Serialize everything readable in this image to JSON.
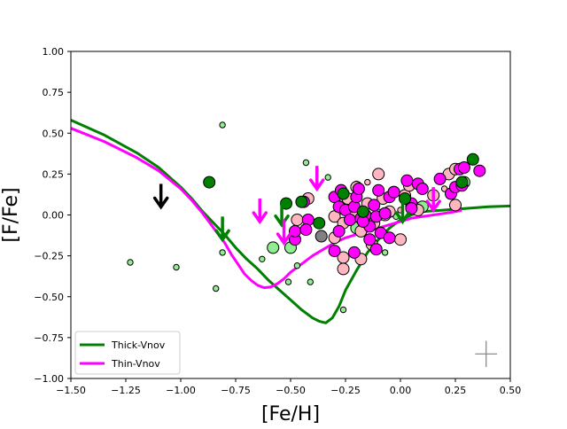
{
  "chart_data": {
    "type": "scatter",
    "title": "",
    "xlabel": "[Fe/H]",
    "ylabel": "[F/Fe]",
    "xlim": [
      -1.5,
      0.5
    ],
    "ylim": [
      -1.0,
      1.0
    ],
    "x_ticks": [
      "−1.50",
      "−1.25",
      "−1.00",
      "−0.75",
      "−0.50",
      "−0.25",
      "0.00",
      "0.25",
      "0.50"
    ],
    "y_ticks": [
      "−1.00",
      "−0.75",
      "−0.50",
      "−0.25",
      "0.00",
      "0.25",
      "0.50",
      "0.75",
      "1.00"
    ],
    "x_tick_values": [
      -1.5,
      -1.25,
      -1.0,
      -0.75,
      -0.5,
      -0.25,
      0.0,
      0.25,
      0.5
    ],
    "y_tick_values": [
      -1.0,
      -0.75,
      -0.5,
      -0.25,
      0.0,
      0.25,
      0.5,
      0.75,
      1.0
    ],
    "grid": false,
    "legend": {
      "placement": "lower-left",
      "entries": [
        {
          "label": "Thick-Vnov",
          "color": "#008000"
        },
        {
          "label": "Thin-Vnov",
          "color": "#ff00ff"
        }
      ]
    },
    "colors": {
      "thick": "#008000",
      "thin": "#ff00ff",
      "lightgreen": "#90ee90",
      "pink": "#ffb6c1",
      "gray": "#808080",
      "black": "#000000"
    },
    "lines": [
      {
        "name": "Thick-Vnov",
        "color": "#008000",
        "x": [
          -1.5,
          -1.35,
          -1.2,
          -1.1,
          -1.0,
          -0.95,
          -0.9,
          -0.85,
          -0.8,
          -0.75,
          -0.7,
          -0.65,
          -0.6,
          -0.55,
          -0.5,
          -0.45,
          -0.4,
          -0.37,
          -0.34,
          -0.31,
          -0.28,
          -0.25,
          -0.2,
          -0.15,
          -0.1,
          -0.05,
          0.0,
          0.05,
          0.1,
          0.2,
          0.3,
          0.4,
          0.5
        ],
        "y": [
          0.58,
          0.49,
          0.38,
          0.29,
          0.17,
          0.1,
          0.02,
          -0.05,
          -0.12,
          -0.2,
          -0.27,
          -0.33,
          -0.4,
          -0.46,
          -0.52,
          -0.58,
          -0.63,
          -0.65,
          -0.66,
          -0.63,
          -0.56,
          -0.46,
          -0.34,
          -0.23,
          -0.15,
          -0.08,
          -0.03,
          0.0,
          0.02,
          0.03,
          0.04,
          0.05,
          0.055
        ]
      },
      {
        "name": "Thin-Vnov",
        "color": "#ff00ff",
        "x": [
          -1.5,
          -1.35,
          -1.2,
          -1.1,
          -1.0,
          -0.95,
          -0.9,
          -0.85,
          -0.8,
          -0.77,
          -0.74,
          -0.71,
          -0.68,
          -0.65,
          -0.62,
          -0.59,
          -0.56,
          -0.53,
          -0.5,
          -0.45,
          -0.4,
          -0.35,
          -0.3,
          -0.25,
          -0.2,
          -0.15,
          -0.1,
          -0.05,
          0.0,
          0.05,
          0.1,
          0.15,
          0.2,
          0.25,
          0.28
        ],
        "y": [
          0.53,
          0.45,
          0.35,
          0.27,
          0.16,
          0.09,
          0.01,
          -0.08,
          -0.17,
          -0.24,
          -0.3,
          -0.36,
          -0.4,
          -0.43,
          -0.445,
          -0.44,
          -0.42,
          -0.39,
          -0.35,
          -0.3,
          -0.25,
          -0.21,
          -0.17,
          -0.14,
          -0.12,
          -0.1,
          -0.08,
          -0.06,
          -0.04,
          -0.02,
          -0.01,
          0.0,
          0.01,
          0.02,
          0.03
        ]
      }
    ],
    "series": [
      {
        "color": "#90ee90",
        "marker_size": "small",
        "points": [
          [
            -1.23,
            -0.29
          ],
          [
            -1.02,
            -0.32
          ],
          [
            -0.81,
            0.55
          ],
          [
            -0.81,
            -0.23
          ],
          [
            -0.84,
            -0.45
          ],
          [
            -0.63,
            -0.27
          ],
          [
            -0.51,
            -0.41
          ],
          [
            -0.47,
            -0.31
          ],
          [
            -0.41,
            -0.41
          ],
          [
            -0.26,
            -0.58
          ],
          [
            -0.07,
            -0.23
          ],
          [
            -0.43,
            0.32
          ],
          [
            -0.33,
            0.23
          ],
          [
            -0.02,
            -0.01
          ],
          [
            0.08,
            0.06
          ]
        ]
      },
      {
        "color": "#90ee90",
        "marker_size": "large",
        "points": [
          [
            -0.58,
            -0.2
          ],
          [
            -0.5,
            -0.2
          ],
          [
            -0.2,
            -0.08
          ],
          [
            -0.1,
            0.0
          ],
          [
            0.1,
            0.05
          ],
          [
            0.29,
            0.2
          ],
          [
            -0.25,
            0.1
          ]
        ]
      },
      {
        "color": "#ffb6c1",
        "marker_size": "small",
        "points": [
          [
            -0.2,
            0.19
          ],
          [
            -0.15,
            0.2
          ],
          [
            0.0,
            0.03
          ],
          [
            -0.28,
            0.02
          ],
          [
            0.2,
            0.16
          ]
        ]
      },
      {
        "color": "#ffb6c1",
        "marker_size": "large",
        "points": [
          [
            -0.47,
            -0.03
          ],
          [
            -0.42,
            0.1
          ],
          [
            -0.3,
            -0.01
          ],
          [
            -0.27,
            0.15
          ],
          [
            -0.26,
            -0.05
          ],
          [
            -0.24,
            0.1
          ],
          [
            -0.22,
            0.0
          ],
          [
            -0.2,
            0.17
          ],
          [
            -0.18,
            -0.1
          ],
          [
            -0.15,
            0.07
          ],
          [
            -0.12,
            -0.05
          ],
          [
            -0.1,
            0.25
          ],
          [
            -0.08,
            0.1
          ],
          [
            -0.05,
            0.02
          ],
          [
            -0.03,
            0.14
          ],
          [
            0.0,
            -0.15
          ],
          [
            0.02,
            0.12
          ],
          [
            0.05,
            0.05
          ],
          [
            0.08,
            0.03
          ],
          [
            0.15,
            0.12
          ],
          [
            0.22,
            0.25
          ],
          [
            0.25,
            0.06
          ],
          [
            -0.26,
            -0.26
          ],
          [
            -0.26,
            -0.33
          ],
          [
            -0.18,
            -0.27
          ],
          [
            -0.13,
            -0.18
          ],
          [
            -0.3,
            -0.14
          ],
          [
            -0.07,
            0.0
          ],
          [
            0.04,
            0.18
          ],
          [
            0.25,
            0.28
          ]
        ]
      },
      {
        "color": "#ff00ff",
        "marker_size": "large",
        "points": [
          [
            -0.48,
            -0.15
          ],
          [
            -0.48,
            -0.1
          ],
          [
            -0.44,
            0.08
          ],
          [
            -0.42,
            -0.03
          ],
          [
            -0.43,
            -0.09
          ],
          [
            -0.3,
            0.11
          ],
          [
            -0.28,
            0.05
          ],
          [
            -0.27,
            0.15
          ],
          [
            -0.25,
            0.03
          ],
          [
            -0.23,
            -0.03
          ],
          [
            -0.21,
            0.05
          ],
          [
            -0.2,
            0.11
          ],
          [
            -0.19,
            0.16
          ],
          [
            -0.18,
            -0.02
          ],
          [
            -0.16,
            0.0
          ],
          [
            -0.14,
            -0.07
          ],
          [
            -0.12,
            0.06
          ],
          [
            -0.11,
            -0.01
          ],
          [
            -0.1,
            0.15
          ],
          [
            -0.09,
            -0.11
          ],
          [
            -0.07,
            0.01
          ],
          [
            -0.05,
            0.11
          ],
          [
            -0.03,
            0.14
          ],
          [
            0.03,
            0.21
          ],
          [
            0.05,
            0.07
          ],
          [
            0.08,
            0.19
          ],
          [
            0.1,
            0.16
          ],
          [
            0.18,
            0.22
          ],
          [
            0.23,
            0.13
          ],
          [
            0.25,
            0.17
          ],
          [
            0.27,
            0.28
          ],
          [
            0.29,
            0.29
          ],
          [
            0.36,
            0.27
          ],
          [
            -0.3,
            -0.22
          ],
          [
            -0.21,
            -0.23
          ],
          [
            -0.11,
            -0.21
          ],
          [
            -0.14,
            -0.15
          ],
          [
            -0.05,
            -0.14
          ],
          [
            0.28,
            0.18
          ],
          [
            -0.28,
            -0.1
          ],
          [
            -0.17,
            -0.04
          ],
          [
            0.05,
            0.04
          ]
        ]
      },
      {
        "color": "#008000",
        "marker_size": "large",
        "points": [
          [
            -0.87,
            0.2
          ],
          [
            -0.52,
            0.07
          ],
          [
            -0.45,
            0.08
          ],
          [
            -0.37,
            -0.05
          ],
          [
            -0.26,
            0.13
          ],
          [
            -0.17,
            0.02
          ],
          [
            0.02,
            0.1
          ],
          [
            0.33,
            0.34
          ],
          [
            0.28,
            0.2
          ]
        ]
      },
      {
        "color": "#808080",
        "marker_size": "large",
        "points": [
          [
            -0.36,
            -0.13
          ]
        ]
      }
    ],
    "arrows": [
      {
        "x": -1.09,
        "y": 0.19,
        "color": "#000000"
      },
      {
        "x": -0.81,
        "y": -0.01,
        "color": "#008000"
      },
      {
        "x": -0.64,
        "y": 0.1,
        "color": "#ff00ff"
      },
      {
        "x": -0.54,
        "y": 0.08,
        "color": "#008000"
      },
      {
        "x": -0.53,
        "y": -0.03,
        "color": "#ff00ff"
      },
      {
        "x": -0.38,
        "y": 0.3,
        "color": "#ff00ff"
      },
      {
        "x": 0.01,
        "y": 0.1,
        "color": "#008000"
      },
      {
        "x": 0.15,
        "y": 0.17,
        "color": "#ff00ff"
      }
    ],
    "error_bar": {
      "x": 0.39,
      "y": -0.85,
      "dx": 0.05,
      "dy": 0.08,
      "color": "#808080"
    }
  }
}
